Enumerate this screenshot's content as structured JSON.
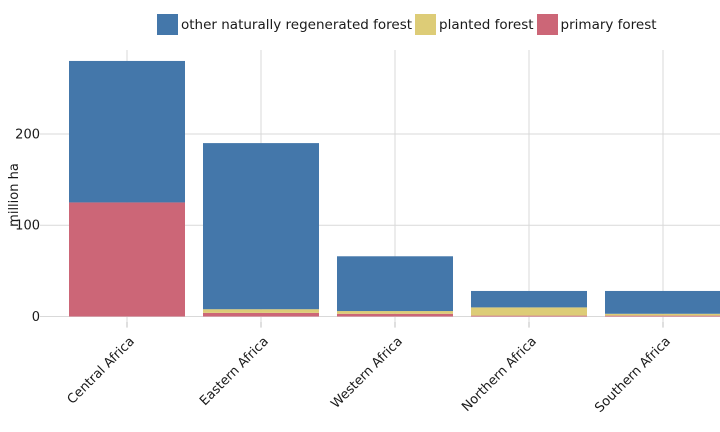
{
  "chart_data": {
    "type": "bar",
    "stacked": true,
    "categories": [
      "Central Africa",
      "Eastern Africa",
      "Western Africa",
      "Northern Africa",
      "Southern Africa"
    ],
    "series": [
      {
        "name": "primary forest",
        "color": "#CC6677",
        "values": [
          125,
          4,
          3,
          1,
          1
        ]
      },
      {
        "name": "planted forest",
        "color": "#DDCC77",
        "values": [
          0,
          4,
          3,
          9,
          2
        ]
      },
      {
        "name": "other naturally regenerated forest",
        "color": "#4477AA",
        "values": [
          155,
          182,
          60,
          18,
          25
        ]
      }
    ],
    "legend_order": [
      "other naturally regenerated forest",
      "planted forest",
      "primary forest"
    ],
    "legend_position": "top",
    "ylabel": "million ha",
    "xlabel": "",
    "yticks": [
      0,
      100,
      200
    ],
    "ylim": [
      -6,
      292
    ],
    "grid": true
  }
}
